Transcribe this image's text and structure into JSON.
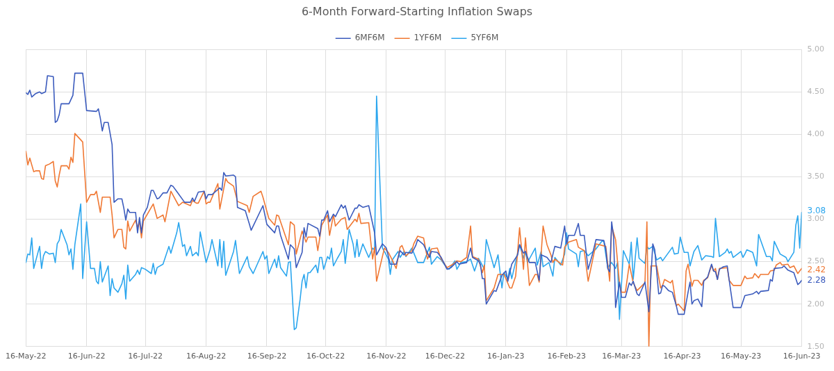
{
  "chart_data": {
    "type": "line",
    "title": "6-Month Forward-Starting Inflation Swaps",
    "series": [
      {
        "name": "6MF6M",
        "color": "#3b5bbd",
        "x": [
          "2022-05-16",
          "2022-05-17",
          "2022-05-18",
          "2022-05-19",
          "2022-05-21",
          "2022-05-23",
          "2022-05-24",
          "2022-05-26",
          "2022-05-27",
          "2022-05-30",
          "2022-05-31",
          "2022-06-01",
          "2022-06-02",
          "2022-06-03",
          "2022-06-07",
          "2022-06-09",
          "2022-06-10",
          "2022-06-14",
          "2022-06-15",
          "2022-06-16",
          "2022-06-21",
          "2022-06-22",
          "2022-06-23",
          "2022-06-24",
          "2022-06-25",
          "2022-06-27",
          "2022-06-28",
          "2022-06-29",
          "2022-06-30",
          "2022-07-02",
          "2022-07-04",
          "2022-07-05",
          "2022-07-06",
          "2022-07-07",
          "2022-07-08",
          "2022-07-11",
          "2022-07-12",
          "2022-07-13",
          "2022-07-14",
          "2022-07-15",
          "2022-07-17",
          "2022-07-19",
          "2022-07-20",
          "2022-07-22",
          "2022-07-23",
          "2022-07-25",
          "2022-07-27",
          "2022-07-29",
          "2022-07-30",
          "2022-08-05",
          "2022-08-08",
          "2022-08-09",
          "2022-08-10",
          "2022-08-12",
          "2022-08-15",
          "2022-08-16",
          "2022-08-17",
          "2022-08-19",
          "2022-08-21",
          "2022-08-23",
          "2022-08-24",
          "2022-08-25",
          "2022-08-26",
          "2022-08-30",
          "2022-08-31",
          "2022-09-01",
          "2022-09-05",
          "2022-09-07",
          "2022-09-08",
          "2022-09-14",
          "2022-09-16",
          "2022-09-20",
          "2022-09-21",
          "2022-09-22",
          "2022-09-23",
          "2022-09-27",
          "2022-09-28",
          "2022-09-30",
          "2022-10-01",
          "2022-10-04",
          "2022-10-05",
          "2022-10-06",
          "2022-10-07",
          "2022-10-12",
          "2022-10-13",
          "2022-10-14",
          "2022-10-15",
          "2022-10-17",
          "2022-10-18",
          "2022-10-20",
          "2022-10-21",
          "2022-10-24",
          "2022-10-25",
          "2022-10-26",
          "2022-10-28",
          "2022-10-31",
          "2022-11-01",
          "2022-11-02",
          "2022-11-04",
          "2022-11-07",
          "2022-11-10",
          "2022-11-11",
          "2022-11-14",
          "2022-11-16",
          "2022-11-18",
          "2022-11-21",
          "2022-11-23",
          "2022-11-25",
          "2022-11-26",
          "2022-11-29",
          "2022-12-01",
          "2022-12-02",
          "2022-12-05",
          "2022-12-08",
          "2022-12-09",
          "2022-12-12",
          "2022-12-14",
          "2022-12-17",
          "2022-12-19",
          "2022-12-22",
          "2022-12-23",
          "2022-12-27",
          "2022-12-29",
          "2022-12-30",
          "2023-01-02",
          "2023-01-03",
          "2023-01-04",
          "2023-01-05",
          "2023-01-06",
          "2023-01-10",
          "2023-01-11",
          "2023-01-14",
          "2023-01-16",
          "2023-01-17",
          "2023-01-19",
          "2023-01-22",
          "2023-01-23",
          "2023-01-25",
          "2023-01-26",
          "2023-01-28",
          "2023-01-31",
          "2023-02-02",
          "2023-02-03",
          "2023-02-06",
          "2023-02-08",
          "2023-02-10",
          "2023-02-13",
          "2023-02-15",
          "2023-02-16",
          "2023-02-17",
          "2023-02-20",
          "2023-02-22",
          "2023-02-23",
          "2023-02-25",
          "2023-02-27",
          "2023-03-01",
          "2023-03-03",
          "2023-03-07",
          "2023-03-08",
          "2023-03-09",
          "2023-03-10",
          "2023-03-11",
          "2023-03-12",
          "2023-03-13",
          "2023-03-15",
          "2023-03-16",
          "2023-03-18",
          "2023-03-20",
          "2023-03-21",
          "2023-03-22",
          "2023-03-24",
          "2023-03-25",
          "2023-03-28",
          "2023-03-30",
          "2023-04-01",
          "2023-04-02",
          "2023-04-04",
          "2023-04-05",
          "2023-04-06",
          "2023-04-07",
          "2023-04-09",
          "2023-04-11",
          "2023-04-13",
          "2023-04-14",
          "2023-04-17",
          "2023-04-19",
          "2023-04-20",
          "2023-04-21",
          "2023-04-22",
          "2023-04-24",
          "2023-04-26",
          "2023-04-27",
          "2023-04-29",
          "2023-05-01",
          "2023-05-02",
          "2023-05-03",
          "2023-05-04",
          "2023-05-05",
          "2023-05-07",
          "2023-05-09",
          "2023-05-10",
          "2023-05-12",
          "2023-05-16",
          "2023-05-18",
          "2023-05-22",
          "2023-05-24",
          "2023-05-25",
          "2023-05-26",
          "2023-05-30",
          "2023-05-31",
          "2023-06-01",
          "2023-06-02",
          "2023-06-06",
          "2023-06-07",
          "2023-06-09",
          "2023-06-12",
          "2023-06-14",
          "2023-06-15",
          "2023-06-16"
        ],
        "values": [
          4.49,
          4.47,
          4.52,
          4.44,
          4.48,
          4.5,
          4.48,
          4.5,
          4.69,
          4.68,
          4.14,
          4.16,
          4.23,
          4.36,
          4.36,
          4.46,
          4.72,
          4.72,
          4.5,
          4.28,
          4.27,
          4.3,
          4.19,
          4.04,
          4.14,
          4.14,
          4.01,
          3.88,
          3.2,
          3.24,
          3.24,
          3.13,
          2.99,
          3.12,
          3.08,
          3.08,
          2.84,
          3.02,
          2.84,
          3.05,
          3.14,
          3.34,
          3.34,
          3.24,
          3.25,
          3.31,
          3.31,
          3.4,
          3.39,
          3.2,
          3.2,
          3.25,
          3.21,
          3.32,
          3.33,
          3.24,
          3.29,
          3.29,
          3.33,
          3.37,
          3.34,
          3.55,
          3.51,
          3.52,
          3.5,
          3.14,
          3.1,
          2.95,
          2.87,
          3.16,
          2.94,
          2.84,
          2.92,
          2.92,
          2.81,
          2.53,
          2.7,
          2.65,
          2.43,
          2.61,
          2.9,
          2.79,
          2.95,
          2.89,
          2.8,
          2.99,
          2.99,
          3.1,
          2.97,
          3.06,
          3.03,
          3.17,
          3.13,
          3.16,
          2.99,
          3.13,
          3.13,
          3.17,
          3.14,
          3.16,
          2.84,
          2.58,
          2.71,
          2.66,
          2.47,
          2.47,
          2.63,
          2.58,
          2.61,
          2.6,
          2.69,
          2.76,
          2.7,
          2.55,
          2.62,
          2.61,
          2.55,
          2.41,
          2.43,
          2.5,
          2.47,
          2.49,
          2.66,
          2.55,
          2.51,
          2.47,
          2.3,
          2.3,
          2.0,
          2.16,
          2.15,
          2.34,
          2.39,
          2.27,
          2.47,
          2.58,
          2.7,
          2.6,
          2.62,
          2.49,
          2.49,
          2.28,
          2.58,
          2.55,
          2.49,
          2.68,
          2.66,
          2.92,
          2.71,
          2.81,
          2.81,
          2.95,
          2.81,
          2.81,
          2.41,
          2.57,
          2.76,
          2.75,
          2.65,
          2.42,
          2.38,
          2.97,
          2.79,
          1.96,
          2.26,
          2.08,
          2.08,
          2.25,
          2.22,
          2.27,
          2.12,
          2.1,
          2.26,
          1.91,
          2.71,
          2.64,
          2.12,
          2.13,
          2.22,
          2.21,
          2.16,
          2.14,
          1.98,
          1.88,
          1.88,
          2.14,
          2.26,
          2.0,
          2.04,
          2.06,
          1.97,
          2.27,
          2.32,
          2.47,
          2.39,
          2.38,
          2.29,
          2.41,
          2.44,
          2.45,
          2.28,
          1.96,
          1.96,
          2.1,
          2.12,
          2.15,
          2.12,
          2.15,
          2.16,
          2.29,
          2.27,
          2.42,
          2.43,
          2.45,
          2.4,
          2.37,
          2.23,
          2.25,
          2.28
        ]
      },
      {
        "name": "1YF6M",
        "color": "#f07833",
        "x": [
          "2022-05-16",
          "2022-05-17",
          "2022-05-18",
          "2022-05-20",
          "2022-05-21",
          "2022-05-23",
          "2022-05-24",
          "2022-05-25",
          "2022-05-26",
          "2022-05-28",
          "2022-05-30",
          "2022-05-31",
          "2022-06-01",
          "2022-06-02",
          "2022-06-03",
          "2022-06-06",
          "2022-06-07",
          "2022-06-08",
          "2022-06-09",
          "2022-06-10",
          "2022-06-14",
          "2022-06-16",
          "2022-06-18",
          "2022-06-20",
          "2022-06-21",
          "2022-06-23",
          "2022-06-24",
          "2022-06-28",
          "2022-06-29",
          "2022-06-30",
          "2022-07-02",
          "2022-07-04",
          "2022-07-05",
          "2022-07-06",
          "2022-07-07",
          "2022-07-08",
          "2022-07-11",
          "2022-07-12",
          "2022-07-13",
          "2022-07-14",
          "2022-07-15",
          "2022-07-20",
          "2022-07-22",
          "2022-07-25",
          "2022-07-26",
          "2022-07-29",
          "2022-08-02",
          "2022-08-04",
          "2022-08-08",
          "2022-08-09",
          "2022-08-11",
          "2022-08-12",
          "2022-08-15",
          "2022-08-16",
          "2022-08-17",
          "2022-08-18",
          "2022-08-22",
          "2022-08-23",
          "2022-08-26",
          "2022-08-27",
          "2022-08-30",
          "2022-09-01",
          "2022-09-06",
          "2022-09-07",
          "2022-09-09",
          "2022-09-13",
          "2022-09-14",
          "2022-09-17",
          "2022-09-20",
          "2022-09-21",
          "2022-09-22",
          "2022-09-23",
          "2022-09-27",
          "2022-09-28",
          "2022-09-30",
          "2022-10-01",
          "2022-10-04",
          "2022-10-06",
          "2022-10-07",
          "2022-10-11",
          "2022-10-12",
          "2022-10-14",
          "2022-10-17",
          "2022-10-18",
          "2022-10-20",
          "2022-10-21",
          "2022-10-24",
          "2022-10-26",
          "2022-10-27",
          "2022-10-31",
          "2022-11-01",
          "2022-11-02",
          "2022-11-03",
          "2022-11-07",
          "2022-11-09",
          "2022-11-10",
          "2022-11-11",
          "2022-11-15",
          "2022-11-17",
          "2022-11-19",
          "2022-11-21",
          "2022-11-23",
          "2022-11-24",
          "2022-11-26",
          "2022-11-29",
          "2022-11-30",
          "2022-12-02",
          "2022-12-05",
          "2022-12-07",
          "2022-12-09",
          "2022-12-12",
          "2022-12-14",
          "2022-12-17",
          "2022-12-20",
          "2022-12-22",
          "2022-12-24",
          "2022-12-27",
          "2022-12-29",
          "2022-12-30",
          "2023-01-02",
          "2023-01-04",
          "2023-01-05",
          "2023-01-06",
          "2023-01-10",
          "2023-01-12",
          "2023-01-15",
          "2023-01-16",
          "2023-01-18",
          "2023-01-19",
          "2023-01-21",
          "2023-01-23",
          "2023-01-25",
          "2023-01-26",
          "2023-01-28",
          "2023-01-31",
          "2023-02-01",
          "2023-02-02",
          "2023-02-04",
          "2023-02-06",
          "2023-02-08",
          "2023-02-09",
          "2023-02-10",
          "2023-02-14",
          "2023-02-15",
          "2023-02-17",
          "2023-02-21",
          "2023-02-22",
          "2023-02-25",
          "2023-02-27",
          "2023-03-03",
          "2023-03-08",
          "2023-03-10",
          "2023-03-11",
          "2023-03-13",
          "2023-03-15",
          "2023-03-16",
          "2023-03-18",
          "2023-03-20",
          "2023-03-22",
          "2023-03-24",
          "2023-03-28",
          "2023-03-29",
          "2023-03-30",
          "2023-03-31",
          "2023-04-03",
          "2023-04-05",
          "2023-04-06",
          "2023-04-07",
          "2023-04-10",
          "2023-04-11",
          "2023-04-13",
          "2023-04-14",
          "2023-04-17",
          "2023-04-18",
          "2023-04-19",
          "2023-04-21",
          "2023-04-22",
          "2023-04-24",
          "2023-04-26",
          "2023-04-27",
          "2023-04-29",
          "2023-05-01",
          "2023-05-02",
          "2023-05-03",
          "2023-05-04",
          "2023-05-05",
          "2023-05-09",
          "2023-05-10",
          "2023-05-12",
          "2023-05-16",
          "2023-05-18",
          "2023-05-19",
          "2023-05-22",
          "2023-05-23",
          "2023-05-25",
          "2023-05-26",
          "2023-05-30",
          "2023-05-31",
          "2023-06-02",
          "2023-06-03",
          "2023-06-05",
          "2023-06-06",
          "2023-06-09",
          "2023-06-10",
          "2023-06-12",
          "2023-06-14",
          "2023-06-15",
          "2023-06-16"
        ],
        "values": [
          3.8,
          3.64,
          3.72,
          3.56,
          3.57,
          3.57,
          3.48,
          3.47,
          3.63,
          3.65,
          3.68,
          3.45,
          3.38,
          3.52,
          3.63,
          3.63,
          3.59,
          3.73,
          3.67,
          4.01,
          3.91,
          3.2,
          3.29,
          3.29,
          3.33,
          3.08,
          3.26,
          3.26,
          3.05,
          2.78,
          2.88,
          2.88,
          2.67,
          2.65,
          2.98,
          2.86,
          2.99,
          2.9,
          2.97,
          2.78,
          2.98,
          3.18,
          3.01,
          3.05,
          2.97,
          3.33,
          3.16,
          3.2,
          3.16,
          3.22,
          3.19,
          3.19,
          3.33,
          3.18,
          3.2,
          3.2,
          3.42,
          3.12,
          3.48,
          3.44,
          3.39,
          3.21,
          3.16,
          3.08,
          3.27,
          3.33,
          3.26,
          3.01,
          2.93,
          3.05,
          3.04,
          2.97,
          2.7,
          2.97,
          2.93,
          2.59,
          2.86,
          2.73,
          2.79,
          2.79,
          2.63,
          2.93,
          3.05,
          2.81,
          3.05,
          2.92,
          3.0,
          3.02,
          2.88,
          3.0,
          2.97,
          3.07,
          2.95,
          2.96,
          2.53,
          2.67,
          2.27,
          2.66,
          2.61,
          2.52,
          2.42,
          2.67,
          2.69,
          2.57,
          2.63,
          2.71,
          2.8,
          2.78,
          2.53,
          2.65,
          2.66,
          2.53,
          2.43,
          2.47,
          2.51,
          2.5,
          2.55,
          2.92,
          2.56,
          2.53,
          2.37,
          2.46,
          2.04,
          2.19,
          2.35,
          2.35,
          2.3,
          2.19,
          2.19,
          2.33,
          2.9,
          2.41,
          2.78,
          2.22,
          2.35,
          2.35,
          2.26,
          2.92,
          2.7,
          2.58,
          2.49,
          2.53,
          2.46,
          2.67,
          2.73,
          2.76,
          2.67,
          2.63,
          2.27,
          2.71,
          2.68,
          2.27,
          2.92,
          2.76,
          2.24,
          2.14,
          2.14,
          2.47,
          2.25,
          2.16,
          2.25,
          2.97,
          1.5,
          2.45,
          2.45,
          2.19,
          2.22,
          2.29,
          2.25,
          2.28,
          1.98,
          2.0,
          1.92,
          2.39,
          2.47,
          2.21,
          2.28,
          2.28,
          2.22,
          2.28,
          2.31,
          2.46,
          2.39,
          2.42,
          2.29,
          2.42,
          2.43,
          2.28,
          2.22,
          2.22,
          2.33,
          2.3,
          2.31,
          2.36,
          2.31,
          2.35,
          2.35,
          2.39,
          2.4,
          2.46,
          2.49,
          2.46,
          2.47,
          2.43,
          2.45,
          2.36,
          2.39,
          2.42
        ]
      },
      {
        "name": "5YF6M",
        "color": "#2ba6ee",
        "x": [
          "2022-05-16",
          "2022-05-17",
          "2022-05-18",
          "2022-05-19",
          "2022-05-20",
          "2022-05-23",
          "2022-05-24",
          "2022-05-25",
          "2022-05-26",
          "2022-05-28",
          "2022-05-30",
          "2022-05-31",
          "2022-06-01",
          "2022-06-02",
          "2022-06-03",
          "2022-06-06",
          "2022-06-07",
          "2022-06-08",
          "2022-06-09",
          "2022-06-10",
          "2022-06-13",
          "2022-06-14",
          "2022-06-16",
          "2022-06-18",
          "2022-06-20",
          "2022-06-21",
          "2022-06-22",
          "2022-06-23",
          "2022-06-24",
          "2022-06-27",
          "2022-06-28",
          "2022-06-29",
          "2022-06-30",
          "2022-07-02",
          "2022-07-04",
          "2022-07-05",
          "2022-07-06",
          "2022-07-07",
          "2022-07-08",
          "2022-07-11",
          "2022-07-12",
          "2022-07-13",
          "2022-07-14",
          "2022-07-16",
          "2022-07-19",
          "2022-07-20",
          "2022-07-21",
          "2022-07-22",
          "2022-07-25",
          "2022-07-28",
          "2022-07-29",
          "2022-08-01",
          "2022-08-02",
          "2022-08-04",
          "2022-08-05",
          "2022-08-06",
          "2022-08-08",
          "2022-08-09",
          "2022-08-11",
          "2022-08-12",
          "2022-08-13",
          "2022-08-16",
          "2022-08-18",
          "2022-08-19",
          "2022-08-22",
          "2022-08-23",
          "2022-08-24",
          "2022-08-25",
          "2022-08-26",
          "2022-08-30",
          "2022-08-31",
          "2022-09-02",
          "2022-09-06",
          "2022-09-07",
          "2022-09-09",
          "2022-09-14",
          "2022-09-15",
          "2022-09-16",
          "2022-09-17",
          "2022-09-20",
          "2022-09-21",
          "2022-09-22",
          "2022-09-23",
          "2022-09-26",
          "2022-09-27",
          "2022-09-28",
          "2022-09-30",
          "2022-10-01",
          "2022-10-03",
          "2022-10-04",
          "2022-10-05",
          "2022-10-06",
          "2022-10-07",
          "2022-10-08",
          "2022-10-11",
          "2022-10-12",
          "2022-10-13",
          "2022-10-14",
          "2022-10-15",
          "2022-10-17",
          "2022-10-18",
          "2022-10-19",
          "2022-10-20",
          "2022-10-22",
          "2022-10-24",
          "2022-10-25",
          "2022-10-26",
          "2022-10-28",
          "2022-10-30",
          "2022-10-31",
          "2022-11-01",
          "2022-11-02",
          "2022-11-04",
          "2022-11-07",
          "2022-11-09",
          "2022-11-10",
          "2022-11-11",
          "2022-11-14",
          "2022-11-15",
          "2022-11-17",
          "2022-11-18",
          "2022-11-19",
          "2022-11-22",
          "2022-11-23",
          "2022-11-25",
          "2022-11-26",
          "2022-11-29",
          "2022-12-02",
          "2022-12-05",
          "2022-12-08",
          "2022-12-09",
          "2022-12-12",
          "2022-12-14",
          "2022-12-17",
          "2022-12-18",
          "2022-12-21",
          "2022-12-22",
          "2022-12-24",
          "2022-12-27",
          "2022-12-29",
          "2022-12-31",
          "2023-01-01",
          "2023-01-02",
          "2023-01-03",
          "2023-01-05",
          "2023-01-06",
          "2023-01-10",
          "2023-01-12",
          "2023-01-14",
          "2023-01-15",
          "2023-01-17",
          "2023-01-18",
          "2023-01-19",
          "2023-01-23",
          "2023-01-25",
          "2023-01-26",
          "2023-01-27",
          "2023-01-31",
          "2023-02-01",
          "2023-02-03",
          "2023-02-04",
          "2023-02-07",
          "2023-02-09",
          "2023-02-10",
          "2023-02-13",
          "2023-02-15",
          "2023-02-16",
          "2023-02-17",
          "2023-02-21",
          "2023-02-22",
          "2023-02-23",
          "2023-02-25",
          "2023-02-27",
          "2023-03-03",
          "2023-03-06",
          "2023-03-07",
          "2023-03-09",
          "2023-03-10",
          "2023-03-11",
          "2023-03-13",
          "2023-03-14",
          "2023-03-15",
          "2023-03-17",
          "2023-03-20",
          "2023-03-21",
          "2023-03-22",
          "2023-03-24",
          "2023-03-25",
          "2023-03-28",
          "2023-03-29",
          "2023-03-30",
          "2023-04-01",
          "2023-04-03",
          "2023-04-05",
          "2023-04-06",
          "2023-04-11",
          "2023-04-12",
          "2023-04-14",
          "2023-04-15",
          "2023-04-17",
          "2023-04-19",
          "2023-04-20",
          "2023-04-22",
          "2023-04-24",
          "2023-04-26",
          "2023-04-28",
          "2023-05-01",
          "2023-05-02",
          "2023-05-03",
          "2023-05-05",
          "2023-05-08",
          "2023-05-09",
          "2023-05-10",
          "2023-05-11",
          "2023-05-12",
          "2023-05-16",
          "2023-05-17",
          "2023-05-18",
          "2023-05-19",
          "2023-05-22",
          "2023-05-24",
          "2023-05-25",
          "2023-05-29",
          "2023-05-31",
          "2023-06-01",
          "2023-06-02",
          "2023-06-05",
          "2023-06-08",
          "2023-06-09",
          "2023-06-12",
          "2023-06-13",
          "2023-06-14",
          "2023-06-15",
          "2023-06-16"
        ],
        "values": [
          2.49,
          2.59,
          2.58,
          2.78,
          2.42,
          2.68,
          2.42,
          2.57,
          2.62,
          2.59,
          2.6,
          2.49,
          2.71,
          2.75,
          2.88,
          2.7,
          2.58,
          2.65,
          2.41,
          2.7,
          3.18,
          2.3,
          2.97,
          2.42,
          2.42,
          2.27,
          2.24,
          2.5,
          2.26,
          2.45,
          2.1,
          2.3,
          2.19,
          2.14,
          2.24,
          2.34,
          2.06,
          2.46,
          2.27,
          2.35,
          2.4,
          2.35,
          2.43,
          2.41,
          2.36,
          2.48,
          2.35,
          2.43,
          2.47,
          2.68,
          2.6,
          2.84,
          2.96,
          2.68,
          2.7,
          2.57,
          2.68,
          2.57,
          2.61,
          2.57,
          2.85,
          2.49,
          2.64,
          2.76,
          2.45,
          2.76,
          2.43,
          2.74,
          2.34,
          2.62,
          2.75,
          2.36,
          2.56,
          2.44,
          2.36,
          2.62,
          2.53,
          2.57,
          2.36,
          2.53,
          2.43,
          2.57,
          2.43,
          2.33,
          2.49,
          2.5,
          1.7,
          1.72,
          2.06,
          2.27,
          2.35,
          2.19,
          2.37,
          2.37,
          2.46,
          2.37,
          2.55,
          2.55,
          2.41,
          2.56,
          2.53,
          2.66,
          2.45,
          2.54,
          2.62,
          2.76,
          2.48,
          2.88,
          2.71,
          2.55,
          2.76,
          2.56,
          2.71,
          2.55,
          2.66,
          2.64,
          4.45,
          2.66,
          2.62,
          2.53,
          2.35,
          2.52,
          2.62,
          2.55,
          2.62,
          2.56,
          2.66,
          2.49,
          2.49,
          2.67,
          2.47,
          2.56,
          2.52,
          2.42,
          2.41,
          2.51,
          2.41,
          2.49,
          2.5,
          2.53,
          2.39,
          2.46,
          2.54,
          2.5,
          2.41,
          2.76,
          2.43,
          2.58,
          2.19,
          2.37,
          2.3,
          2.42,
          2.3,
          2.7,
          2.54,
          2.62,
          2.49,
          2.66,
          2.46,
          2.62,
          2.44,
          2.49,
          2.33,
          2.55,
          2.46,
          2.59,
          2.84,
          2.65,
          2.59,
          2.44,
          2.62,
          2.63,
          2.57,
          2.65,
          2.74,
          2.74,
          2.43,
          2.46,
          2.49,
          2.42,
          2.49,
          1.82,
          2.63,
          2.47,
          2.73,
          2.29,
          2.78,
          2.54,
          2.48,
          2.68,
          2.65,
          2.68,
          2.52,
          2.55,
          2.51,
          2.67,
          2.59,
          2.6,
          2.79,
          2.61,
          2.61,
          2.45,
          2.62,
          2.69,
          2.52,
          2.57,
          2.56,
          2.55,
          3.01,
          2.56,
          2.61,
          2.65,
          2.6,
          2.62,
          2.55,
          2.62,
          2.55,
          2.59,
          2.64,
          2.61,
          2.45,
          2.82,
          2.56,
          2.56,
          2.51,
          2.74,
          2.59,
          2.55,
          2.5,
          2.61,
          2.93,
          3.04,
          2.66,
          3.08
        ]
      }
    ],
    "xlim": [
      "2022-05-16",
      "2023-06-16"
    ],
    "xticks": [
      {
        "value": "2022-05-16",
        "label": "16-May-22"
      },
      {
        "value": "2022-06-16",
        "label": "16-Jun-22"
      },
      {
        "value": "2022-07-16",
        "label": "16-Jul-22"
      },
      {
        "value": "2022-08-16",
        "label": "16-Aug-22"
      },
      {
        "value": "2022-09-16",
        "label": "16-Sep-22"
      },
      {
        "value": "2022-10-16",
        "label": "16-Oct-22"
      },
      {
        "value": "2022-11-16",
        "label": "16-Nov-22"
      },
      {
        "value": "2022-12-16",
        "label": "16-Dec-22"
      },
      {
        "value": "2023-01-16",
        "label": "16-Jan-23"
      },
      {
        "value": "2023-02-16",
        "label": "16-Feb-23"
      },
      {
        "value": "2023-03-16",
        "label": "16-Mar-23"
      },
      {
        "value": "2023-04-16",
        "label": "16-Apr-23"
      },
      {
        "value": "2023-05-16",
        "label": "16-May-23"
      },
      {
        "value": "2023-06-16",
        "label": "16-Jun-23"
      }
    ],
    "ylim": [
      1.5,
      5
    ],
    "yticks": [
      {
        "value": 1.5,
        "label": "1.50"
      },
      {
        "value": 2,
        "label": "2.00"
      },
      {
        "value": 2.5,
        "label": "2.50"
      },
      {
        "value": 3,
        "label": "3.00"
      },
      {
        "value": 3.5,
        "label": "3.50"
      },
      {
        "value": 4,
        "label": "4.00"
      },
      {
        "value": 4.5,
        "label": "4.50"
      },
      {
        "value": 5,
        "label": "5.00"
      }
    ],
    "grid": true,
    "legend": "top",
    "annotations": [
      {
        "text": "3.08",
        "x": "2023-06-16",
        "y": 3.08
      },
      {
        "text": "2.42",
        "x": "2023-06-16",
        "y": 2.42
      },
      {
        "text": "2.28",
        "x": "2023-06-16",
        "y": 2.28
      }
    ]
  }
}
